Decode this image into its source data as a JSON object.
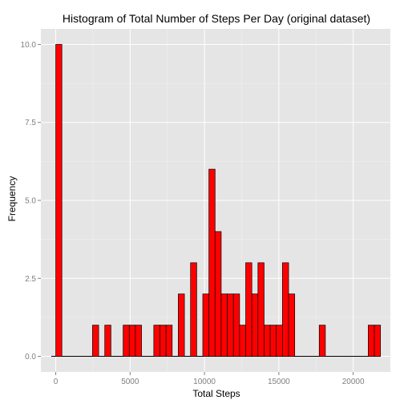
{
  "chart_data": {
    "type": "bar",
    "title": "Histogram of Total Number of Steps Per Day (original dataset)",
    "xlabel": "Total Steps",
    "ylabel": "Frequency",
    "xlim": [
      -1000,
      22500
    ],
    "ylim": [
      -0.5,
      10.5
    ],
    "x_ticks": [
      0,
      5000,
      10000,
      15000,
      20000
    ],
    "x_tick_labels": [
      "0",
      "5000",
      "10000",
      "15000",
      "20000"
    ],
    "y_ticks": [
      0,
      2.5,
      5,
      7.5,
      10
    ],
    "y_tick_labels": [
      "0.0",
      "2.5",
      "5.0",
      "7.5",
      "10.0"
    ],
    "bin_width": 412,
    "bins": [
      {
        "x": 0,
        "count": 0
      },
      {
        "x": 206,
        "count": 10
      },
      {
        "x": 2678,
        "count": 1
      },
      {
        "x": 3502,
        "count": 1
      },
      {
        "x": 4738,
        "count": 1
      },
      {
        "x": 5150,
        "count": 1
      },
      {
        "x": 5562,
        "count": 1
      },
      {
        "x": 6798,
        "count": 1
      },
      {
        "x": 7210,
        "count": 1
      },
      {
        "x": 7622,
        "count": 1
      },
      {
        "x": 8446,
        "count": 2
      },
      {
        "x": 9270,
        "count": 3
      },
      {
        "x": 10094,
        "count": 2
      },
      {
        "x": 10506,
        "count": 6
      },
      {
        "x": 10918,
        "count": 4
      },
      {
        "x": 11330,
        "count": 2
      },
      {
        "x": 11742,
        "count": 2
      },
      {
        "x": 12154,
        "count": 2
      },
      {
        "x": 12566,
        "count": 1
      },
      {
        "x": 12978,
        "count": 3
      },
      {
        "x": 13390,
        "count": 2
      },
      {
        "x": 13802,
        "count": 3
      },
      {
        "x": 14214,
        "count": 1
      },
      {
        "x": 14626,
        "count": 1
      },
      {
        "x": 15038,
        "count": 1
      },
      {
        "x": 15450,
        "count": 3
      },
      {
        "x": 15862,
        "count": 2
      },
      {
        "x": 17922,
        "count": 1
      },
      {
        "x": 21218,
        "count": 1
      },
      {
        "x": 21630,
        "count": 1
      }
    ],
    "baseline_range": [
      -300,
      21800
    ],
    "colors": {
      "bar_fill": "#ff0000",
      "bar_stroke": "#000000",
      "panel_background": "#e5e5e5",
      "grid_major": "#ffffff",
      "grid_minor": "#f2f2f2",
      "tick_text": "#7f7f7f"
    },
    "grid": true
  }
}
